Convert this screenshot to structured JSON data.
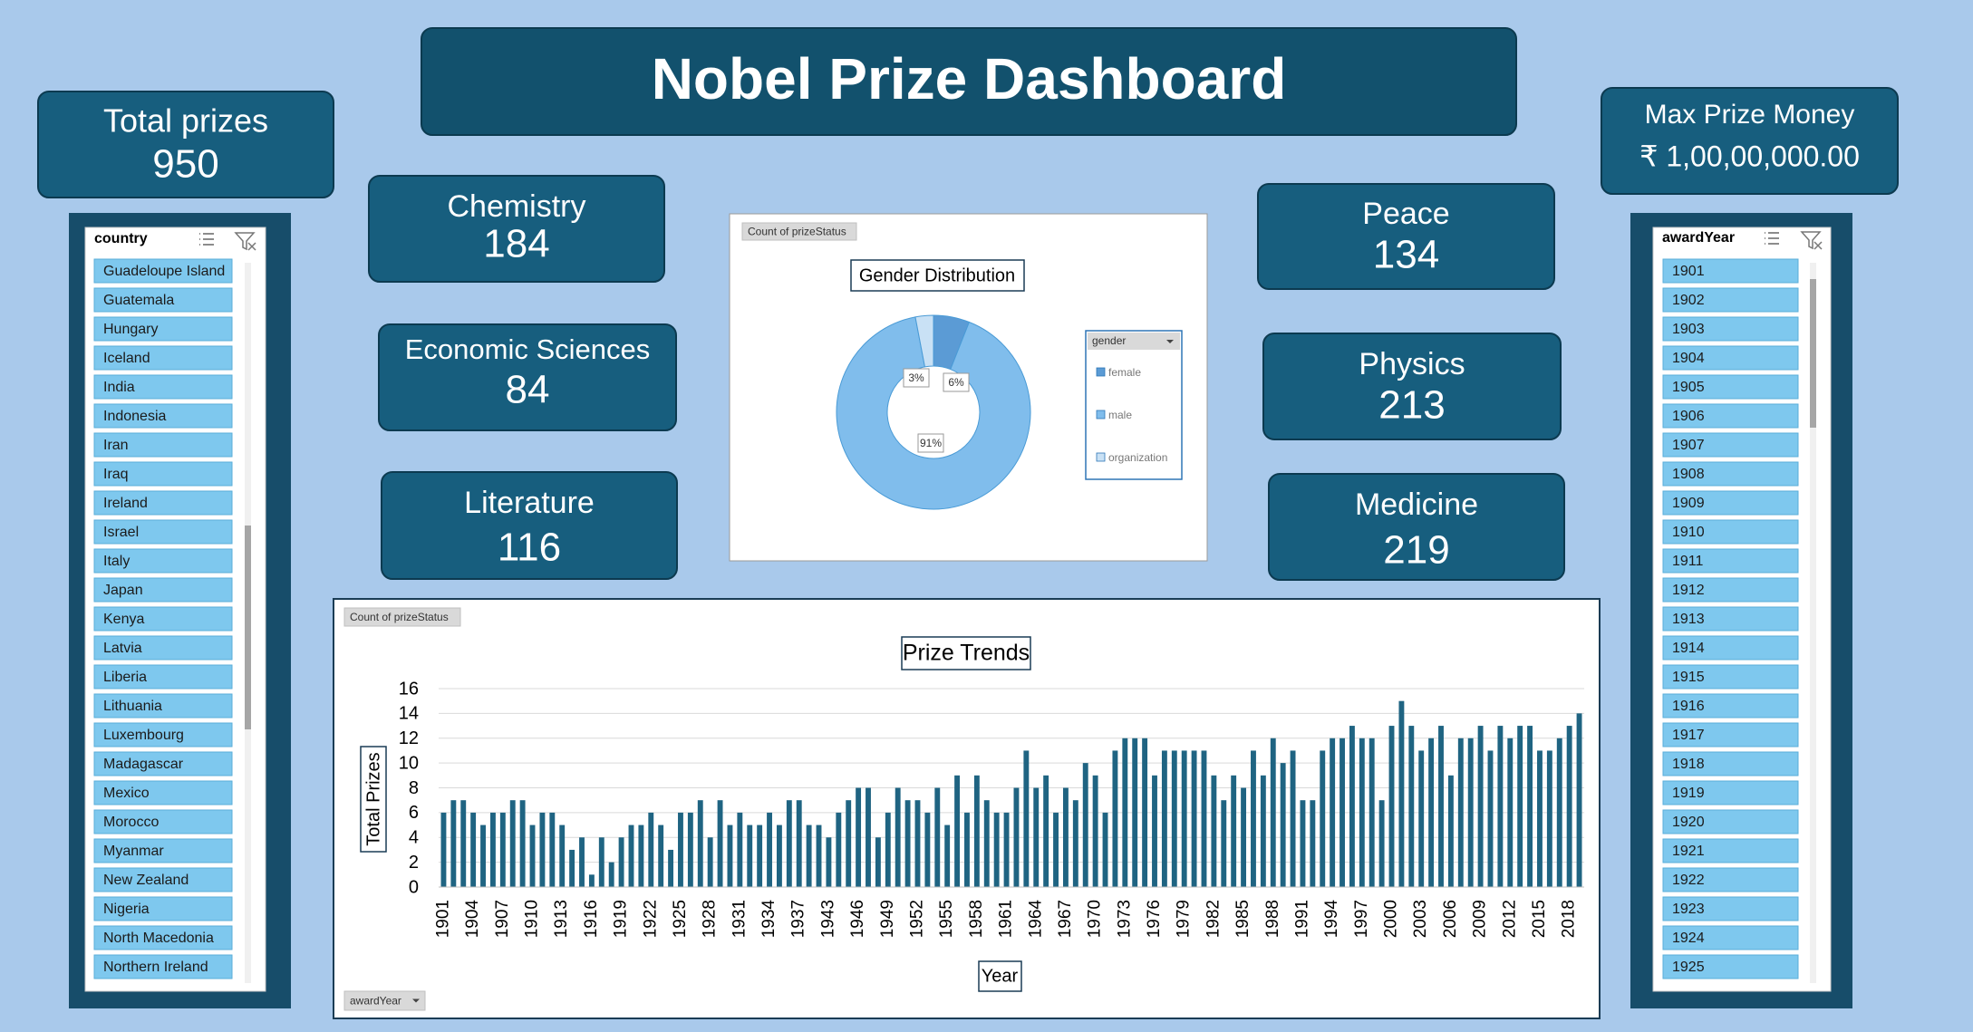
{
  "header": {
    "title": "Nobel Prize Dashboard"
  },
  "kpis": [
    {
      "label": "Total prizes",
      "value": 950
    },
    {
      "label": "Max Prize Money",
      "value": "₹ 1,00,00,000.00"
    },
    {
      "label": "Chemistry",
      "value": 184
    },
    {
      "label": "Economic Sciences",
      "value": 84
    },
    {
      "label": "Literature",
      "value": 116
    },
    {
      "label": "Peace",
      "value": 134
    },
    {
      "label": "Physics",
      "value": 213
    },
    {
      "label": "Medicine",
      "value": 219
    }
  ],
  "slicers": [
    {
      "title": "country",
      "items": [
        "Guadeloupe Island",
        "Guatemala",
        "Hungary",
        "Iceland",
        "India",
        "Indonesia",
        "Iran",
        "Iraq",
        "Ireland",
        "Israel",
        "Italy",
        "Japan",
        "Kenya",
        "Latvia",
        "Liberia",
        "Lithuania",
        "Luxembourg",
        "Madagascar",
        "Mexico",
        "Morocco",
        "Myanmar",
        "New Zealand",
        "Nigeria",
        "North Macedonia",
        "Northern Ireland"
      ]
    },
    {
      "title": "awardYear",
      "items": [
        "1901",
        "1902",
        "1903",
        "1904",
        "1905",
        "1906",
        "1907",
        "1908",
        "1909",
        "1910",
        "1911",
        "1912",
        "1913",
        "1914",
        "1915",
        "1916",
        "1917",
        "1918",
        "1919",
        "1920",
        "1921",
        "1922",
        "1923",
        "1924",
        "1925"
      ]
    }
  ],
  "chart_data": [
    {
      "type": "donut",
      "title": "Gender Distribution",
      "field_button": "Count of prizeStatus",
      "legend_title": "gender",
      "legend": "right",
      "categories": [
        "female",
        "male",
        "organization"
      ],
      "values": [
        6,
        91,
        3
      ],
      "value_labels": [
        "6%",
        "91%",
        "3%"
      ],
      "colors": [
        "#5b9bd5",
        "#80bdec",
        "#c9e1f5"
      ]
    },
    {
      "type": "bar",
      "title": "Prize Trends",
      "field_button": "Count of prizeStatus",
      "axis_button": "awardYear",
      "x_label": "Year",
      "y_label": "Total Prizes",
      "color": "#1f6482",
      "grid": true,
      "ylim": [
        0,
        16
      ],
      "yticks": [
        0,
        2,
        4,
        6,
        8,
        10,
        12,
        14,
        16
      ],
      "categories": [
        "1901",
        null,
        null,
        "1904",
        null,
        null,
        "1907",
        null,
        null,
        "1910",
        null,
        null,
        "1913",
        null,
        null,
        "1916",
        null,
        null,
        "1919",
        null,
        null,
        "1922",
        null,
        null,
        "1925",
        null,
        null,
        "1928",
        null,
        null,
        "1931",
        null,
        null,
        "1934",
        null,
        null,
        "1937",
        null,
        null,
        "1943",
        null,
        null,
        "1946",
        null,
        null,
        "1949",
        null,
        null,
        "1952",
        null,
        null,
        "1955",
        null,
        null,
        "1958",
        null,
        null,
        "1961",
        null,
        null,
        "1964",
        null,
        null,
        "1967",
        null,
        null,
        "1970",
        null,
        null,
        "1973",
        null,
        null,
        "1976",
        null,
        null,
        "1979",
        null,
        null,
        "1982",
        null,
        null,
        "1985",
        null,
        null,
        "1988",
        null,
        null,
        "1991",
        null,
        null,
        "1994",
        null,
        null,
        "1997",
        null,
        null,
        "2000",
        null,
        null,
        "2003",
        null,
        null,
        "2006",
        null,
        null,
        "2009",
        null,
        null,
        "2012",
        null,
        null,
        "2015",
        null,
        null,
        "2018",
        null
      ],
      "values": [
        6,
        7,
        7,
        6,
        5,
        6,
        6,
        7,
        7,
        5,
        6,
        6,
        5,
        3,
        4,
        1,
        4,
        2,
        4,
        5,
        5,
        6,
        5,
        3,
        6,
        6,
        7,
        4,
        7,
        5,
        6,
        5,
        5,
        6,
        5,
        7,
        7,
        5,
        5,
        4,
        6,
        7,
        8,
        8,
        4,
        6,
        8,
        7,
        7,
        6,
        8,
        5,
        9,
        6,
        9,
        7,
        6,
        6,
        8,
        11,
        8,
        9,
        6,
        8,
        7,
        10,
        9,
        6,
        11,
        12,
        12,
        12,
        9,
        11,
        11,
        11,
        11,
        11,
        9,
        7,
        9,
        8,
        11,
        9,
        12,
        10,
        11,
        7,
        7,
        11,
        12,
        12,
        13,
        12,
        12,
        7,
        13,
        15,
        13,
        11,
        12,
        13,
        9,
        12,
        12,
        13,
        11,
        13,
        12,
        13,
        13,
        11,
        11,
        12,
        13,
        14
      ]
    }
  ]
}
